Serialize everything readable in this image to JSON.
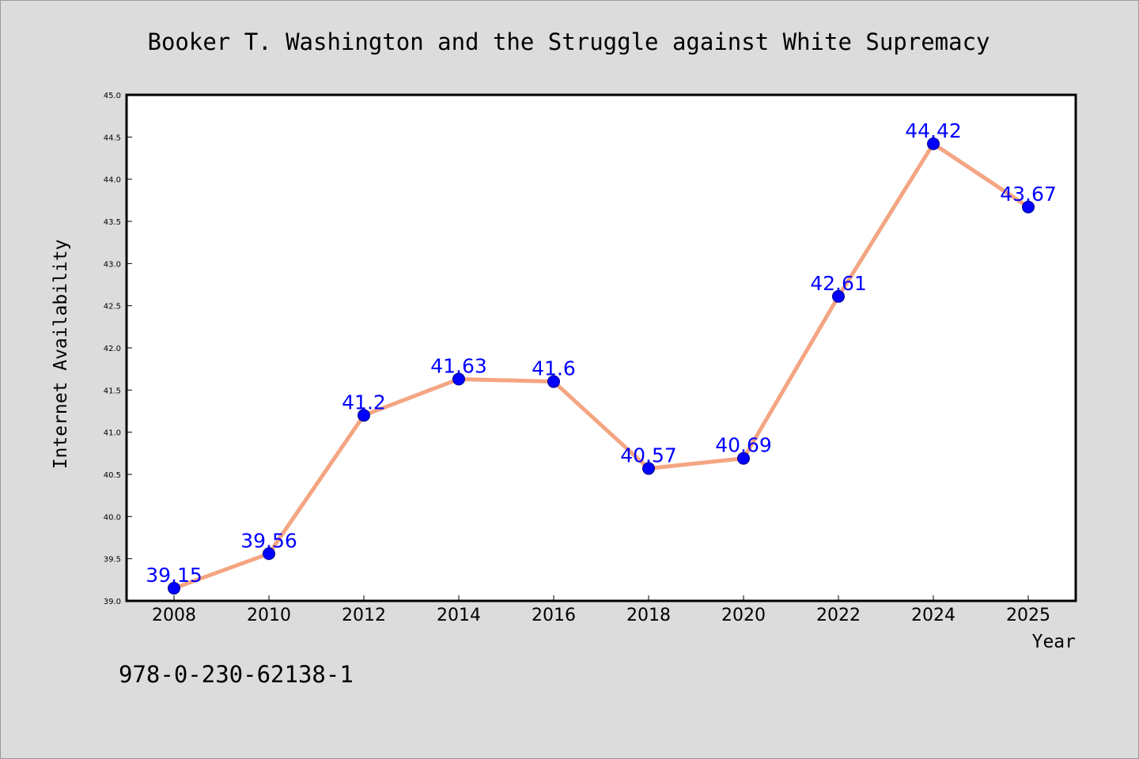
{
  "chart_data": {
    "type": "line",
    "title": "Booker T. Washington and the Struggle against White Supremacy",
    "xlabel": "Year",
    "ylabel": "Internet Availability",
    "categories": [
      "2008",
      "2010",
      "2012",
      "2014",
      "2016",
      "2018",
      "2020",
      "2022",
      "2024",
      "2025"
    ],
    "series": [
      {
        "values": [
          39.15,
          39.56,
          41.2,
          41.63,
          41.6,
          40.57,
          40.69,
          42.61,
          44.42,
          43.67
        ],
        "labels": [
          "39.15",
          "39.56",
          "41.2",
          "41.63",
          "41.6",
          "40.57",
          "40.69",
          "42.61",
          "44.42",
          "43.67"
        ],
        "line_color": "#f4a582",
        "marker_color": "#0000ff"
      }
    ],
    "ylim": [
      39.0,
      45.0
    ],
    "yticks": [
      "39.0",
      "39.5",
      "40.0",
      "40.5",
      "41.0",
      "41.5",
      "42.0",
      "42.5",
      "43.0",
      "43.5",
      "44.0",
      "44.5",
      "45.0"
    ],
    "grid": false,
    "legend": "none"
  },
  "footer": {
    "isbn": "978-0-230-62138-1"
  },
  "colors": {
    "background": "#dcdcdc",
    "plot_area": "#ffffff",
    "line": "#f4a582",
    "marker": "#0000ff",
    "label": "#0000ff"
  }
}
